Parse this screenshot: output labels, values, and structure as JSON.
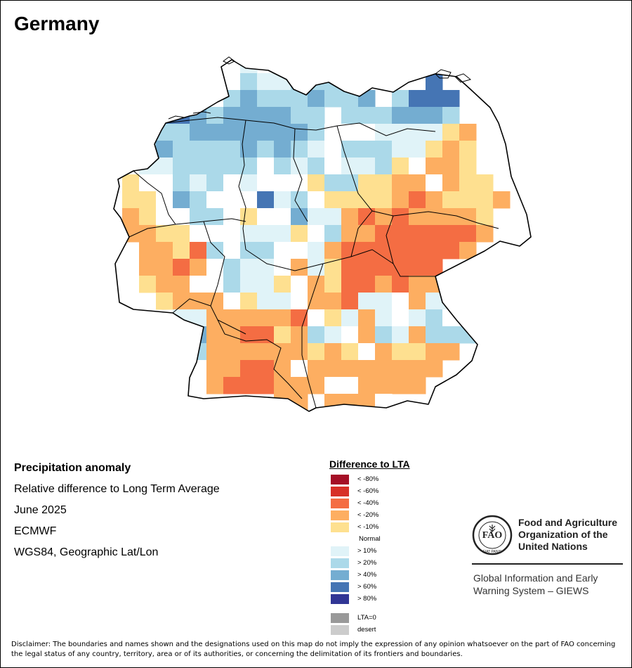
{
  "map": {
    "title": "Germany"
  },
  "info": {
    "lines": [
      "Precipitation anomaly",
      "Relative difference to Long Term Average",
      "June 2025",
      "ECMWF",
      "WGS84, Geographic Lat/Lon"
    ]
  },
  "legend": {
    "title": "Difference to LTA",
    "items": [
      {
        "label": "< -80%",
        "color": "#a50f26"
      },
      {
        "label": "< -60%",
        "color": "#d73027"
      },
      {
        "label": "< -40%",
        "color": "#f46d43"
      },
      {
        "label": "< -20%",
        "color": "#fdae61"
      },
      {
        "label": "< -10%",
        "color": "#fee090"
      },
      {
        "label": "Normal",
        "color": "#ffffff"
      },
      {
        "label": "> 10%",
        "color": "#e0f3f8"
      },
      {
        "label": "> 20%",
        "color": "#abd9e9"
      },
      {
        "label": "> 40%",
        "color": "#74add1"
      },
      {
        "label": "> 60%",
        "color": "#4575b4"
      },
      {
        "label": "> 80%",
        "color": "#313695"
      }
    ],
    "extra": [
      {
        "label": "LTA=0",
        "color": "#999999"
      },
      {
        "label": "desert",
        "color": "#cccccc"
      }
    ]
  },
  "fao": {
    "name_lines": [
      "Food and Agriculture",
      "Organization of the",
      "United Nations"
    ],
    "emblem_text": "FIAT PANIS",
    "giews_lines": [
      "Global Information and Early",
      "Warning System – GIEWS"
    ]
  },
  "disclaimer": "Disclaimer: The boundaries and names shown and the designations used on this map do not imply the expression of any opinion whatsoever on the part of FAO concerning the legal status of any country, territory, area or of its authorities, or concerning the delimitation of its frontiers and boundaries.",
  "anomaly_grid": {
    "encoding": "index into legend.items (0 = <-80%, 5 = Normal, 10 = >80%); '.' = outside country",
    "rows": [
      "........6..7..............",
      "........7667776....9......",
      ".......787778778.7999.....",
      "...9987888877.7778887.....",
      "..77788888887555666643....",
      "..78777787876577766434....",
      "..66777775767566745334....",
      ".4557675655547744335344...",
      ".44587555967544443234443..",
      ".3455775455866323233334...",
      ".3344555666457332222223...",
      "..33427577556322222223....",
      "..332357665364222222......",
      "..4335576645342232333.....",
      "...4333546653326653663....",
      "....66333332546365675.....",
      ".....83322437653763777....",
      ".....7333333434534433.....",
      ".....533223533333333......",
      "......3222333553333.......",
      "..........33.3335.........."
    ]
  }
}
